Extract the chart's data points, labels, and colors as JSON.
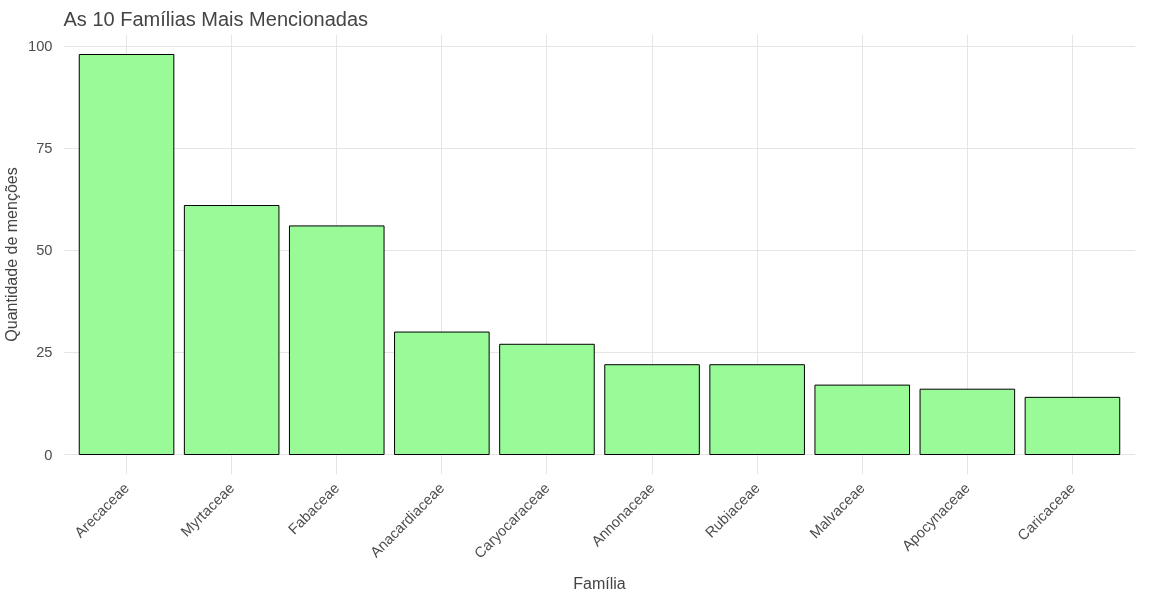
{
  "chart_data": {
    "type": "bar",
    "title": "As 10 Famílias Mais Mencionadas",
    "xlabel": "Família",
    "ylabel": "Quantidade de menções",
    "categories": [
      "Arecaceae",
      "Myrtaceae",
      "Fabaceae",
      "Anacardiaceae",
      "Caryocaraceae",
      "Annonaceae",
      "Rubiaceae",
      "Malvaceae",
      "Apocynaceae",
      "Caricaceae"
    ],
    "values": [
      98,
      61,
      56,
      30,
      27,
      22,
      22,
      17,
      16,
      14
    ],
    "color": "#98fb98",
    "ylim": [
      -4.9,
      102.9
    ],
    "yticks": [
      0,
      25,
      50,
      75,
      100
    ],
    "grid": true
  }
}
